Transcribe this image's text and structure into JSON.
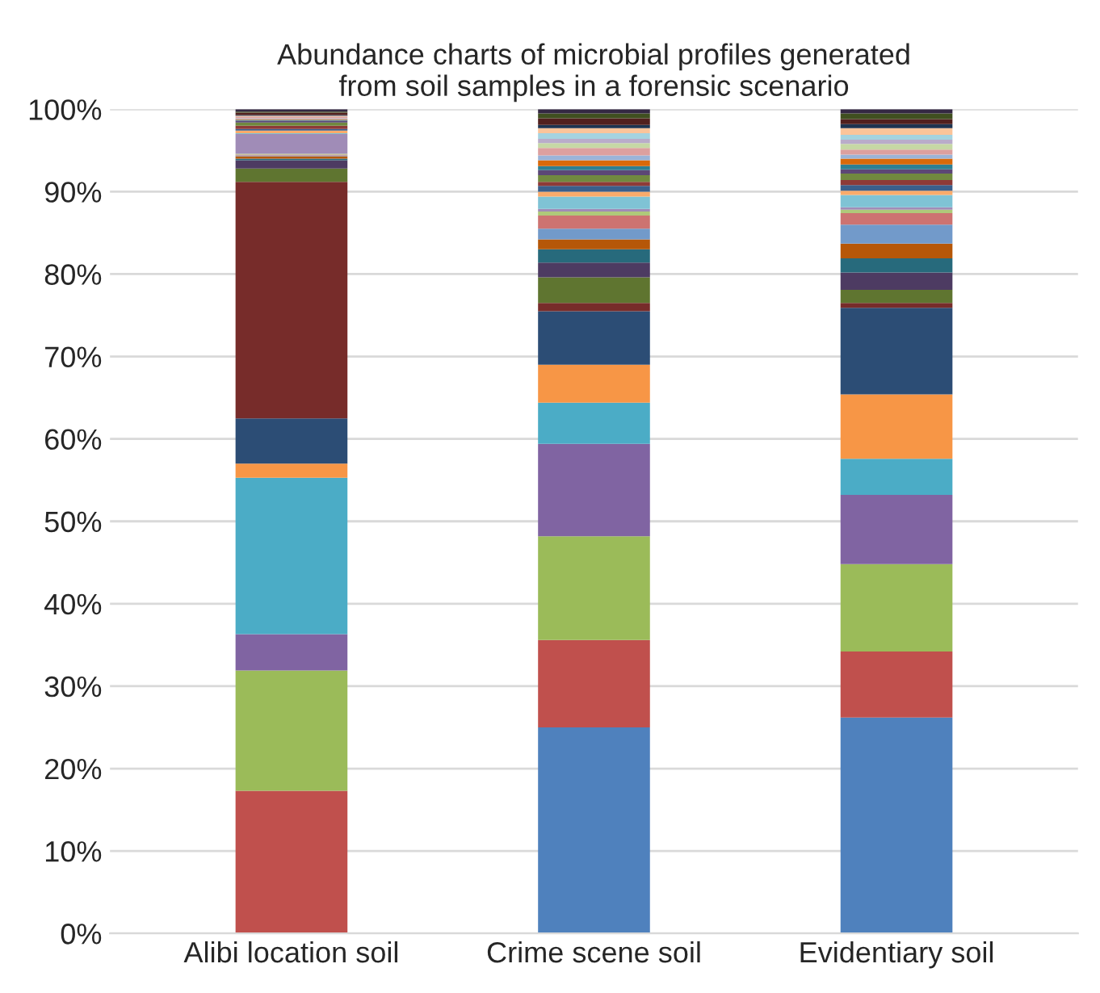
{
  "chart_data": {
    "type": "bar",
    "stacked": true,
    "title": "Abundance charts of microbial profiles generated\nfrom soil samples in a forensic scenario",
    "categories": [
      "Alibi location soil",
      "Crime scene soil",
      "Evidentiary soil"
    ],
    "ylim": [
      0,
      100
    ],
    "yticks": [
      {
        "value": 0,
        "label": "0%"
      },
      {
        "value": 10,
        "label": "10%"
      },
      {
        "value": 20,
        "label": "20%"
      },
      {
        "value": 30,
        "label": "30%"
      },
      {
        "value": 40,
        "label": "40%"
      },
      {
        "value": 50,
        "label": "50%"
      },
      {
        "value": 60,
        "label": "60%"
      },
      {
        "value": 70,
        "label": "70%"
      },
      {
        "value": 80,
        "label": "80%"
      },
      {
        "value": 90,
        "label": "90%"
      },
      {
        "value": 100,
        "label": "100%"
      }
    ],
    "grid": "y",
    "series": [
      {
        "color": "#4f81bd",
        "values": [
          0,
          25.0,
          26.2
        ]
      },
      {
        "color": "#c0504d",
        "values": [
          17.3,
          10.6,
          8.0
        ]
      },
      {
        "color": "#9bbb59",
        "values": [
          14.6,
          12.6,
          10.6
        ]
      },
      {
        "color": "#8064a2",
        "values": [
          4.4,
          11.2,
          8.4
        ]
      },
      {
        "color": "#4bacc6",
        "values": [
          19.0,
          5.0,
          4.4
        ]
      },
      {
        "color": "#f79646",
        "values": [
          1.7,
          4.6,
          7.8
        ]
      },
      {
        "color": "#2c4d75",
        "values": [
          5.5,
          6.5,
          10.5
        ]
      },
      {
        "color": "#772c2a",
        "values": [
          28.7,
          1.0,
          0.6
        ]
      },
      {
        "color": "#5f7530",
        "values": [
          1.6,
          3.1,
          1.6
        ]
      },
      {
        "color": "#4d3b62",
        "values": [
          1.0,
          1.8,
          2.1
        ]
      },
      {
        "color": "#276a7c",
        "values": [
          0.2,
          1.6,
          1.7
        ]
      },
      {
        "color": "#b65708",
        "values": [
          0.3,
          1.2,
          1.8
        ]
      },
      {
        "color": "#729aca",
        "values": [
          0.1,
          1.3,
          2.3
        ]
      },
      {
        "color": "#cd7371",
        "values": [
          0.1,
          1.6,
          1.4
        ]
      },
      {
        "color": "#afc97a",
        "values": [
          0.1,
          0.5,
          0.4
        ]
      },
      {
        "color": "#a08cb7",
        "values": [
          2.4,
          0.3,
          0.3
        ]
      },
      {
        "color": "#7fc3d5",
        "values": [
          0.1,
          1.5,
          1.5
        ]
      },
      {
        "color": "#f9ab6b",
        "values": [
          0.3,
          0.6,
          0.5
        ]
      },
      {
        "color": "#3a5f8b",
        "values": [
          0.2,
          0.7,
          0.7
        ]
      },
      {
        "color": "#8e3a37",
        "values": [
          0.4,
          0.5,
          0.6
        ]
      },
      {
        "color": "#71893f",
        "values": [
          0.4,
          0.8,
          0.8
        ]
      },
      {
        "color": "#5c4776",
        "values": [
          0.2,
          0.6,
          0.5
        ]
      },
      {
        "color": "#2f7f94",
        "values": [
          0.1,
          0.5,
          0.6
        ]
      },
      {
        "color": "#d9690b",
        "values": [
          0.1,
          0.7,
          0.7
        ]
      },
      {
        "color": "#9ab4d8",
        "values": [
          0.1,
          0.6,
          0.5
        ]
      },
      {
        "color": "#dca09f",
        "values": [
          0.2,
          0.9,
          0.6
        ]
      },
      {
        "color": "#c6d8a5",
        "values": [
          null,
          0.6,
          0.7
        ]
      },
      {
        "color": "#b9acca",
        "values": [
          null,
          0.5,
          0.5
        ]
      },
      {
        "color": "#a5d3e0",
        "values": [
          null,
          0.7,
          0.6
        ]
      },
      {
        "color": "#fbc49a",
        "values": [
          0.1,
          0.6,
          0.8
        ]
      },
      {
        "color": "#1e3450",
        "values": [
          0.1,
          0.4,
          0.5
        ]
      },
      {
        "color": "#52201e",
        "values": [
          0.3,
          0.8,
          0.6
        ]
      },
      {
        "color": "#404f20",
        "values": [
          0.1,
          0.6,
          0.7
        ]
      },
      {
        "color": "#342843",
        "values": [
          0.3,
          0.5,
          0.5
        ]
      }
    ]
  }
}
